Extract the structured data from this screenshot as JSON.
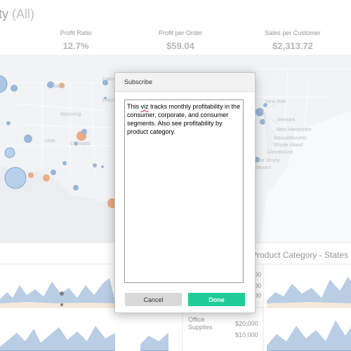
{
  "dashboard": {
    "title_main": "ty",
    "title_filter": "(All)",
    "kpis": [
      {
        "label": "Profit Ratio",
        "value": "12.7%"
      },
      {
        "label": "Profit per Order",
        "value": "$59.04"
      },
      {
        "label": "Sales per Customer",
        "value": "$2,313.72"
      }
    ],
    "map_labels": {
      "dakota": "Dakota",
      "ntana": "ntana",
      "wyoming": "Wyoming",
      "utah": "Utah",
      "colorado": "Colorado",
      "new_york": "New York",
      "vermont": "Vermont",
      "new_hampshire": "New Hampshire",
      "massachusetts": "Massachusetts",
      "rhode_island": "Rhode Island",
      "connecticut": "Connecticut",
      "new_jersey": "New Jersey",
      "delaware": "elaware",
      "district": "District of Columbia"
    },
    "bottom_panel_title": "Product Category - States",
    "axis_values": [
      "$20,000",
      "$10,000"
    ],
    "partial_axis_values": [
      "00",
      "00",
      "00"
    ],
    "category_label": "Office Supplies"
  },
  "dialog": {
    "title": "Subscribe",
    "message_before": "This ",
    "message_misspelled": "viz",
    "message_after": " tracks monthly profitability in the consumer, corporate, and consumer segments. Also see profitability by product category.",
    "cancel_label": "Cancel",
    "done_label": "Done"
  },
  "colors": {
    "accent_done": "#1fcc97",
    "cancel_bg": "#d9d9d9",
    "profit_blue": "#5b8cc0",
    "loss_orange": "#e07b39"
  }
}
